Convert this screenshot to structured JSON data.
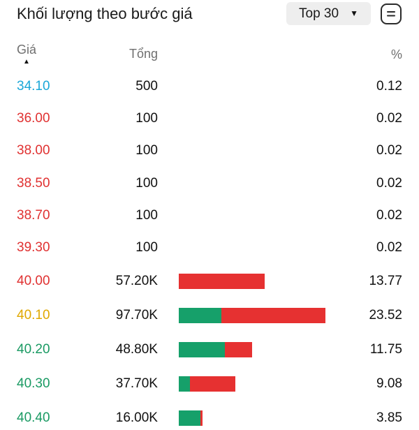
{
  "header": {
    "title": "Khối lượng theo bước giá",
    "filter_label": "Top 30",
    "caret": "▼"
  },
  "columns": {
    "price": "Giá",
    "sort_indicator": "▲",
    "total": "Tổng",
    "percent": "%"
  },
  "colors": {
    "reference": "#1aa7d8",
    "down": "#e03131",
    "ceiling_ref": "#e0a800",
    "up": "#1a9a63",
    "buy_bar": "#16a06a",
    "sell_bar": "#e63131"
  },
  "rows": [
    {
      "price": "34.10",
      "total": "500",
      "percent": "0.12",
      "price_color": "#1aa7d8",
      "buy_pct": 0,
      "sell_pct": 0
    },
    {
      "price": "36.00",
      "total": "100",
      "percent": "0.02",
      "price_color": "#e03131",
      "buy_pct": 0,
      "sell_pct": 0
    },
    {
      "price": "38.00",
      "total": "100",
      "percent": "0.02",
      "price_color": "#e03131",
      "buy_pct": 0,
      "sell_pct": 0
    },
    {
      "price": "38.50",
      "total": "100",
      "percent": "0.02",
      "price_color": "#e03131",
      "buy_pct": 0,
      "sell_pct": 0
    },
    {
      "price": "38.70",
      "total": "100",
      "percent": "0.02",
      "price_color": "#e03131",
      "buy_pct": 0,
      "sell_pct": 0
    },
    {
      "price": "39.30",
      "total": "100",
      "percent": "0.02",
      "price_color": "#e03131",
      "buy_pct": 0,
      "sell_pct": 0
    },
    {
      "price": "40.00",
      "total": "57.20K",
      "percent": "13.77",
      "price_color": "#e03131",
      "buy_pct": 0,
      "sell_pct": 100
    },
    {
      "price": "40.10",
      "total": "97.70K",
      "percent": "23.52",
      "price_color": "#e0a800",
      "buy_pct": 29,
      "sell_pct": 71
    },
    {
      "price": "40.20",
      "total": "48.80K",
      "percent": "11.75",
      "price_color": "#1a9a63",
      "buy_pct": 63,
      "sell_pct": 37
    },
    {
      "price": "40.30",
      "total": "37.70K",
      "percent": "9.08",
      "price_color": "#1a9a63",
      "buy_pct": 20,
      "sell_pct": 80
    },
    {
      "price": "40.40",
      "total": "16.00K",
      "percent": "3.85",
      "price_color": "#1a9a63",
      "buy_pct": 92,
      "sell_pct": 8
    }
  ]
}
